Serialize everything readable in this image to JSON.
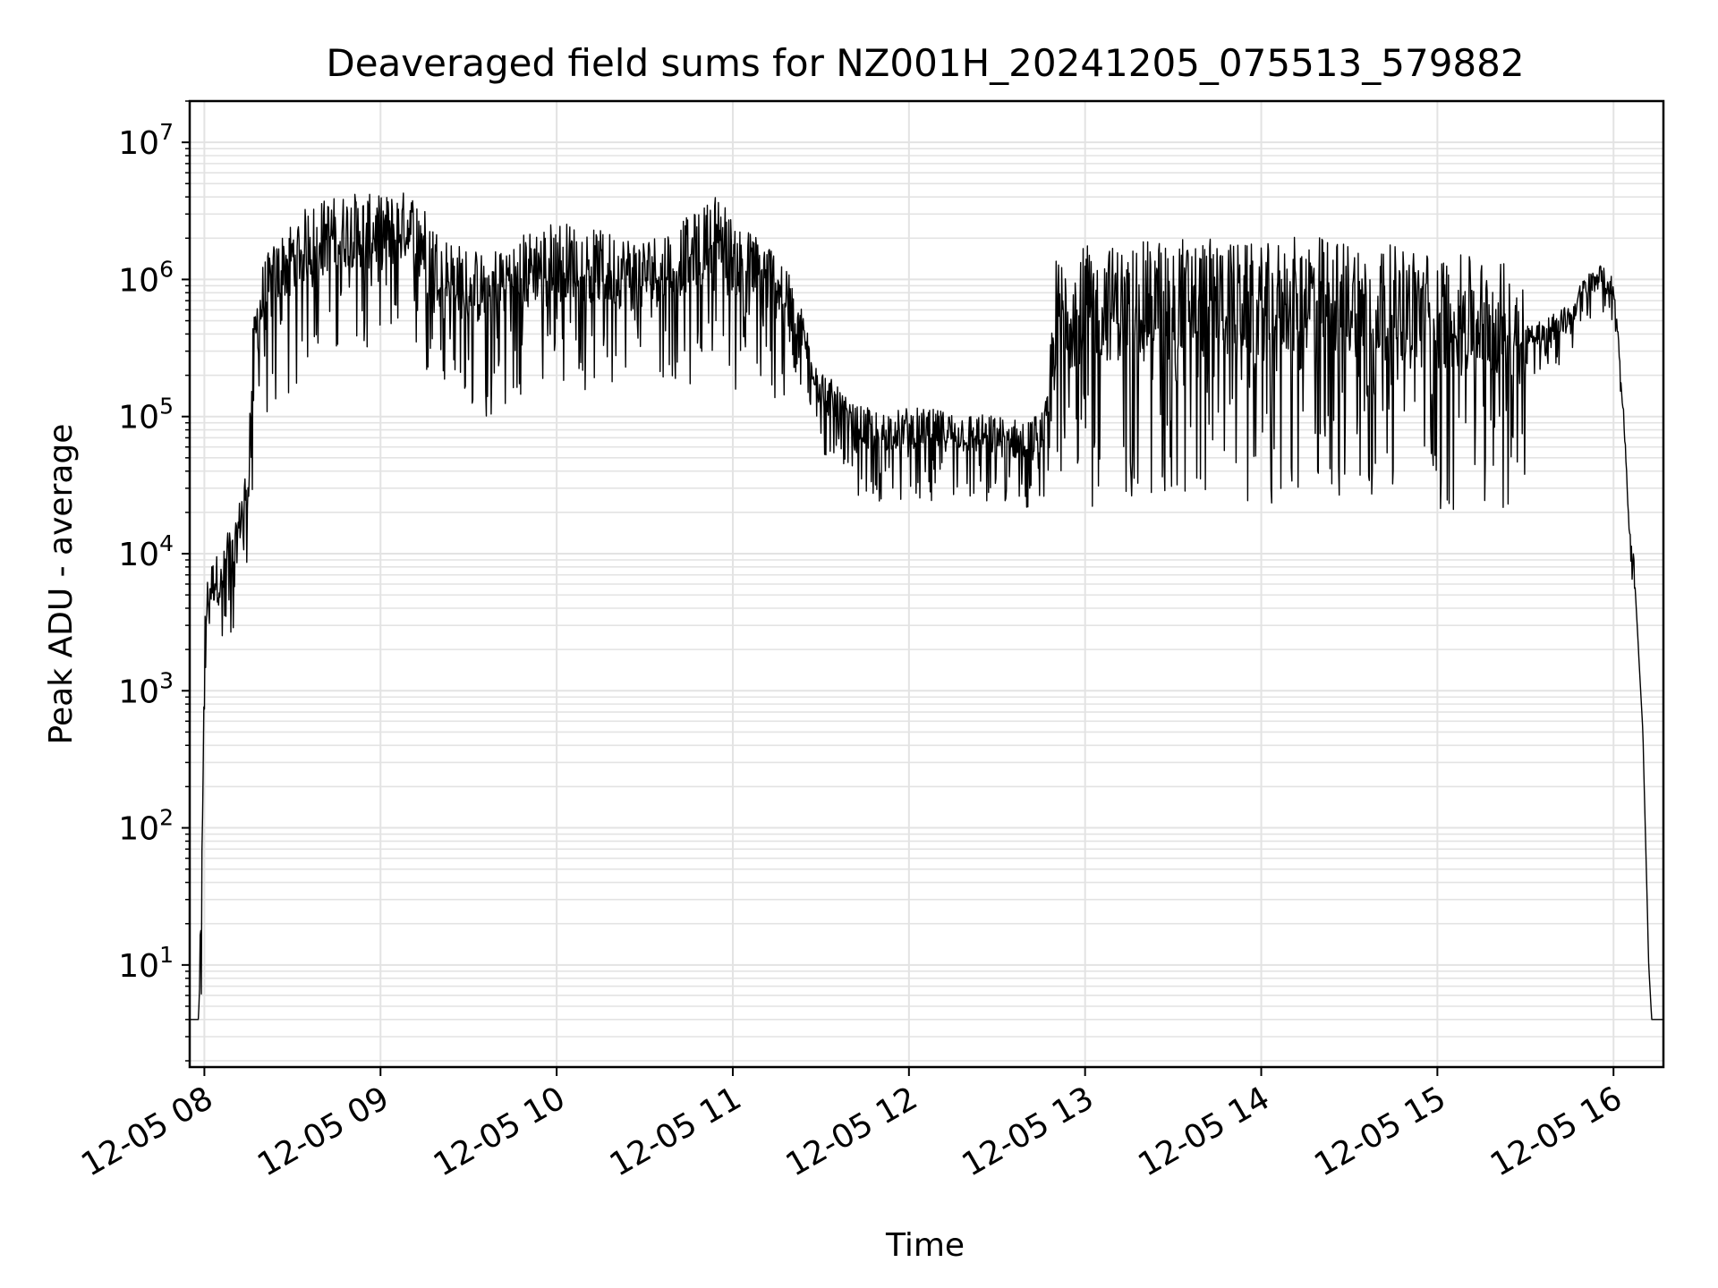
{
  "chart_data": {
    "type": "line",
    "title": "Deaveraged field sums for NZ001H_20241205_075513_579882",
    "xlabel": "Time",
    "ylabel": "Peak ADU - average",
    "yscale": "log",
    "ylim": [
      1.8,
      20000000
    ],
    "xlim": [
      "2024-12-05 07:55",
      "2024-12-05 16:17"
    ],
    "grid": true,
    "x_ticks": [
      "12-05 08",
      "12-05 09",
      "12-05 10",
      "12-05 11",
      "12-05 12",
      "12-05 13",
      "12-05 14",
      "12-05 15",
      "12-05 16"
    ],
    "y_ticks": [
      {
        "value": 10,
        "base": "10",
        "exp": "1"
      },
      {
        "value": 100,
        "base": "10",
        "exp": "2"
      },
      {
        "value": 1000,
        "base": "10",
        "exp": "3"
      },
      {
        "value": 10000,
        "base": "10",
        "exp": "4"
      },
      {
        "value": 100000,
        "base": "10",
        "exp": "5"
      },
      {
        "value": 1000000,
        "base": "10",
        "exp": "6"
      },
      {
        "value": 10000000,
        "base": "10",
        "exp": "7"
      }
    ],
    "series": [
      {
        "color": "#000000",
        "x": [
          "2024-12-05 07:55",
          "2024-12-05 07:58",
          "2024-12-05 07:59",
          "2024-12-05 08:00",
          "2024-12-05 08:01",
          "2024-12-05 08:02",
          "2024-12-05 08:04",
          "2024-12-05 08:06",
          "2024-12-05 08:08",
          "2024-12-05 08:10",
          "2024-12-05 08:12",
          "2024-12-05 08:14",
          "2024-12-05 08:15",
          "2024-12-05 08:16",
          "2024-12-05 08:18",
          "2024-12-05 08:20",
          "2024-12-05 08:25",
          "2024-12-05 08:30",
          "2024-12-05 08:35",
          "2024-12-05 08:40",
          "2024-12-05 08:45",
          "2024-12-05 08:50",
          "2024-12-05 09:00",
          "2024-12-05 09:10",
          "2024-12-05 09:15",
          "2024-12-05 09:20",
          "2024-12-05 09:27",
          "2024-12-05 09:35",
          "2024-12-05 09:45",
          "2024-12-05 10:00",
          "2024-12-05 10:15",
          "2024-12-05 10:30",
          "2024-12-05 10:40",
          "2024-12-05 10:50",
          "2024-12-05 10:55",
          "2024-12-05 11:00",
          "2024-12-05 11:10",
          "2024-12-05 11:20",
          "2024-12-05 11:25",
          "2024-12-05 11:30",
          "2024-12-05 11:40",
          "2024-12-05 11:50",
          "2024-12-05 12:00",
          "2024-12-05 12:15",
          "2024-12-05 12:30",
          "2024-12-05 12:40",
          "2024-12-05 12:45",
          "2024-12-05 12:48",
          "2024-12-05 12:50",
          "2024-12-05 13:00",
          "2024-12-05 13:15",
          "2024-12-05 13:30",
          "2024-12-05 13:45",
          "2024-12-05 14:00",
          "2024-12-05 14:15",
          "2024-12-05 14:30",
          "2024-12-05 14:45",
          "2024-12-05 15:00",
          "2024-12-05 15:15",
          "2024-12-05 15:30",
          "2024-12-05 15:45",
          "2024-12-05 15:50",
          "2024-12-05 15:55",
          "2024-12-05 16:00",
          "2024-12-05 16:02",
          "2024-12-05 16:04",
          "2024-12-05 16:05",
          "2024-12-05 16:06",
          "2024-12-05 16:07",
          "2024-12-05 16:10",
          "2024-12-05 16:12",
          "2024-12-05 16:13",
          "2024-12-05 16:15",
          "2024-12-05 16:17"
        ],
        "y": [
          4,
          4,
          20,
          2000,
          4000,
          5000,
          6000,
          5000,
          10000,
          8000,
          15000,
          25000,
          30000,
          150000,
          400000,
          600000,
          900000,
          1200000,
          1500000,
          1700000,
          1800000,
          1900000,
          1800000,
          2000000,
          1500000,
          1000000,
          800000,
          700000,
          900000,
          1200000,
          1000000,
          900000,
          1100000,
          1500000,
          2000000,
          1200000,
          900000,
          700000,
          300000,
          150000,
          80000,
          70000,
          75000,
          70000,
          65000,
          60000,
          70000,
          100000,
          400000,
          500000,
          500000,
          600000,
          550000,
          500000,
          600000,
          550000,
          500000,
          450000,
          400000,
          350000,
          500000,
          800000,
          1000000,
          800000,
          300000,
          60000,
          20000,
          10000,
          8000,
          500,
          10,
          4,
          4,
          4
        ]
      }
    ]
  }
}
